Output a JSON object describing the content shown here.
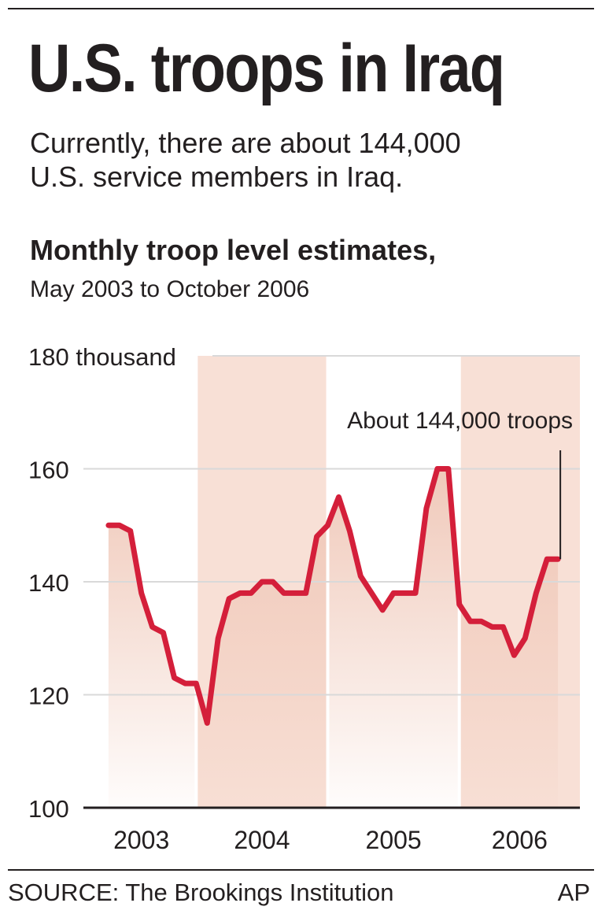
{
  "header": {
    "title": "U.S. troops in Iraq",
    "subtitle_line1": "Currently, there are about 144,000",
    "subtitle_line2": "U.S. service members in Iraq.",
    "chart_heading": "Monthly troop level estimates,",
    "chart_subheading": "May 2003 to October 2006"
  },
  "footer": {
    "source": "SOURCE: The Brookings Institution",
    "credit": "AP"
  },
  "colors": {
    "line": "#d41f3a",
    "band": "#f8e0d6",
    "fill_top": "#efc6b6",
    "text": "#231f20",
    "grid": "#d9d9d9"
  },
  "chart_data": {
    "type": "area",
    "ylim": [
      100,
      180
    ],
    "yticks": [
      100,
      120,
      140,
      160,
      180
    ],
    "ytick_labels": [
      "100",
      "120",
      "140",
      "160",
      "180 thousand"
    ],
    "years": [
      "2003",
      "2004",
      "2005",
      "2006"
    ],
    "shaded_years": [
      "2004",
      "2006"
    ],
    "x_range": [
      "2003-03",
      "2006-12"
    ],
    "grid": "horizontal",
    "annotation": {
      "text": "About 144,000 troops",
      "x": "2006-10",
      "y": 144
    },
    "series": [
      {
        "x": [
          "2003-05",
          "2003-06",
          "2003-07",
          "2003-08",
          "2003-09",
          "2003-10",
          "2003-11",
          "2003-12",
          "2004-01",
          "2004-02",
          "2004-03",
          "2004-04",
          "2004-05",
          "2004-06",
          "2004-07",
          "2004-08",
          "2004-09",
          "2004-10",
          "2004-11",
          "2004-12",
          "2005-01",
          "2005-02",
          "2005-03",
          "2005-04",
          "2005-05",
          "2005-06",
          "2005-07",
          "2005-08",
          "2005-09",
          "2005-10",
          "2005-11",
          "2005-12",
          "2006-01",
          "2006-02",
          "2006-03",
          "2006-04",
          "2006-05",
          "2006-06",
          "2006-07",
          "2006-08",
          "2006-09",
          "2006-10"
        ],
        "values": [
          150,
          150,
          149,
          138,
          132,
          131,
          123,
          122,
          122,
          115,
          130,
          137,
          138,
          138,
          140,
          140,
          138,
          138,
          138,
          148,
          150,
          155,
          149,
          141,
          138,
          135,
          138,
          138,
          138,
          153,
          160,
          160,
          136,
          133,
          133,
          132,
          132,
          127,
          130,
          138,
          144,
          144
        ]
      }
    ]
  }
}
